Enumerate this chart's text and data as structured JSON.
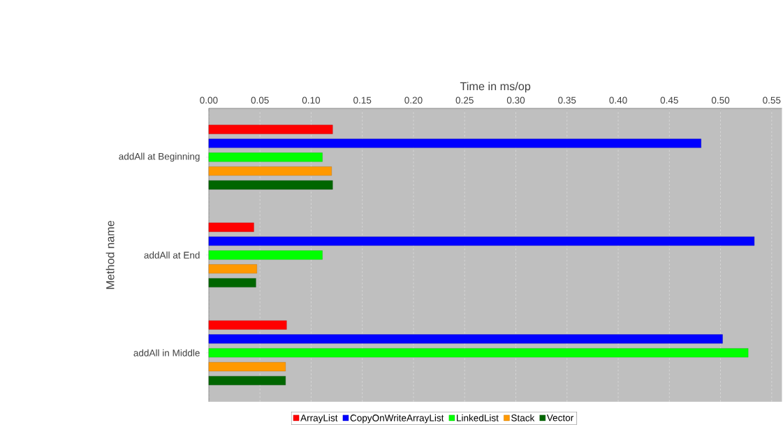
{
  "chart_data": {
    "type": "bar",
    "orientation": "horizontal",
    "xlabel": "Time in ms/op",
    "ylabel": "Method name",
    "categories": [
      "addAll at Beginning",
      "addAll at End",
      "addAll in Middle"
    ],
    "series": [
      {
        "name": "ArrayList",
        "color": "#ff0000",
        "values": [
          0.121,
          0.044,
          0.076
        ]
      },
      {
        "name": "CopyOnWriteArrayList",
        "color": "#0000ff",
        "values": [
          0.481,
          0.533,
          0.502
        ]
      },
      {
        "name": "LinkedList",
        "color": "#00ff00",
        "values": [
          0.111,
          0.111,
          0.527
        ]
      },
      {
        "name": "Stack",
        "color": "#ff9900",
        "values": [
          0.12,
          0.047,
          0.075
        ]
      },
      {
        "name": "Vector",
        "color": "#006600",
        "values": [
          0.121,
          0.046,
          0.075
        ]
      }
    ],
    "xlim": [
      0,
      0.56
    ],
    "xticks": [
      {
        "value": 0,
        "label": "0.00"
      },
      {
        "value": 0.05,
        "label": "0.05"
      },
      {
        "value": 0.1,
        "label": "0.10"
      },
      {
        "value": 0.15,
        "label": "0.15"
      },
      {
        "value": 0.2,
        "label": "0.20"
      },
      {
        "value": 0.25,
        "label": "0.25"
      },
      {
        "value": 0.3,
        "label": "0.30"
      },
      {
        "value": 0.35,
        "label": "0.35"
      },
      {
        "value": 0.4,
        "label": "0.40"
      },
      {
        "value": 0.45,
        "label": "0.45"
      },
      {
        "value": 0.5,
        "label": "0.50"
      },
      {
        "value": 0.55,
        "label": "0.55"
      }
    ],
    "grid": "x",
    "legend": "bottom"
  }
}
